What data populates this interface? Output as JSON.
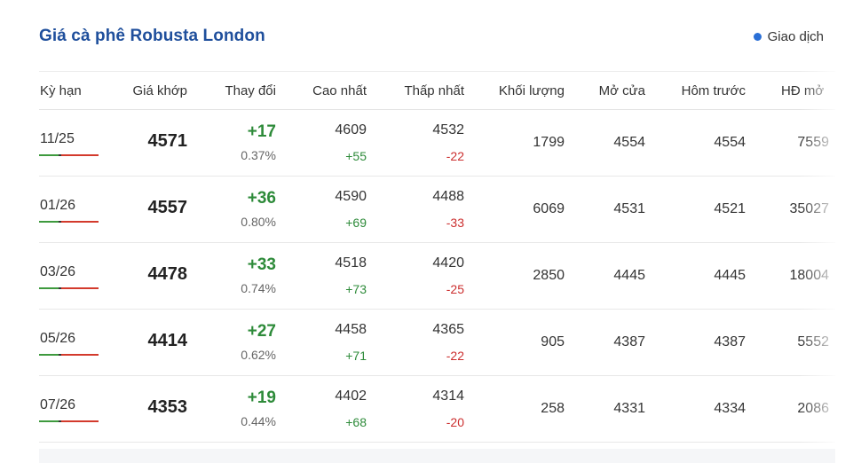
{
  "title": "Giá cà phê Robusta London",
  "status": {
    "label": "Giao dịch",
    "dot_color": "#2a6fd6",
    "icon": "status-dot-icon"
  },
  "columns": [
    "Kỳ hạn",
    "Giá khớp",
    "Thay đổi",
    "Cao nhất",
    "Thấp nhất",
    "Khối lượng",
    "Mở cửa",
    "Hôm trước",
    "HĐ mở"
  ],
  "colors": {
    "up": "#2e8b3a",
    "down": "#cc2f2f",
    "title": "#1f4f9c"
  },
  "rows": [
    {
      "term": "11/25",
      "price": "4571",
      "change": "+17",
      "pct": "0.37%",
      "high": "4609",
      "high_chg": "+55",
      "low": "4532",
      "low_chg": "-22",
      "volume": "1799",
      "open": "4554",
      "prev": "4554",
      "oi": "7559"
    },
    {
      "term": "01/26",
      "price": "4557",
      "change": "+36",
      "pct": "0.80%",
      "high": "4590",
      "high_chg": "+69",
      "low": "4488",
      "low_chg": "-33",
      "volume": "6069",
      "open": "4531",
      "prev": "4521",
      "oi": "35027"
    },
    {
      "term": "03/26",
      "price": "4478",
      "change": "+33",
      "pct": "0.74%",
      "high": "4518",
      "high_chg": "+73",
      "low": "4420",
      "low_chg": "-25",
      "volume": "2850",
      "open": "4445",
      "prev": "4445",
      "oi": "18004"
    },
    {
      "term": "05/26",
      "price": "4414",
      "change": "+27",
      "pct": "0.62%",
      "high": "4458",
      "high_chg": "+71",
      "low": "4365",
      "low_chg": "-22",
      "volume": "905",
      "open": "4387",
      "prev": "4387",
      "oi": "5552"
    },
    {
      "term": "07/26",
      "price": "4353",
      "change": "+19",
      "pct": "0.44%",
      "high": "4402",
      "high_chg": "+68",
      "low": "4314",
      "low_chg": "-20",
      "volume": "258",
      "open": "4331",
      "prev": "4334",
      "oi": "2086"
    }
  ]
}
